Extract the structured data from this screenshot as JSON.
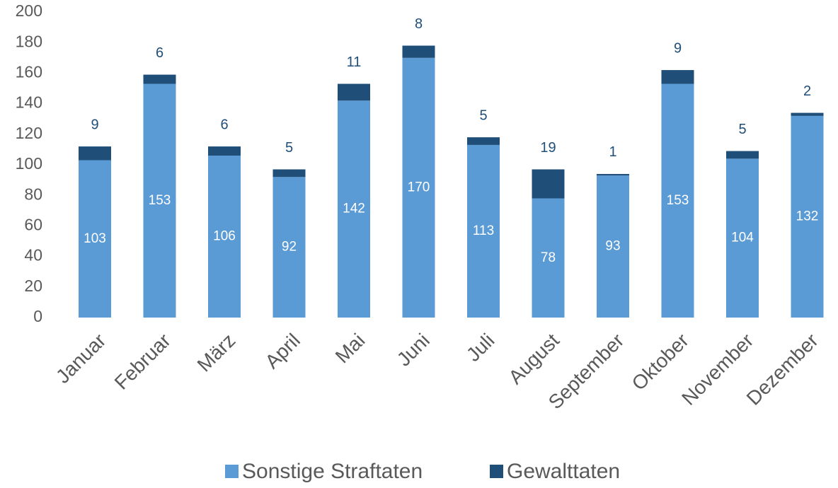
{
  "chart_data": {
    "type": "stacked_bar",
    "categories": [
      "Januar",
      "Februar",
      "März",
      "April",
      "Mai",
      "Juni",
      "Juli",
      "August",
      "September",
      "Oktober",
      "November",
      "Dezember"
    ],
    "series": [
      {
        "name": "Sonstige Straftaten",
        "color": "#5b9bd5",
        "values": [
          103,
          153,
          106,
          92,
          142,
          170,
          113,
          78,
          93,
          153,
          104,
          132
        ]
      },
      {
        "name": "Gewalttaten",
        "color": "#1f4e79",
        "values": [
          9,
          6,
          6,
          5,
          11,
          8,
          5,
          19,
          1,
          9,
          5,
          2
        ]
      }
    ],
    "ylim": [
      0,
      200
    ],
    "yticks": [
      0,
      20,
      40,
      60,
      80,
      100,
      120,
      140,
      160,
      180,
      200
    ],
    "legend": "bottom"
  }
}
